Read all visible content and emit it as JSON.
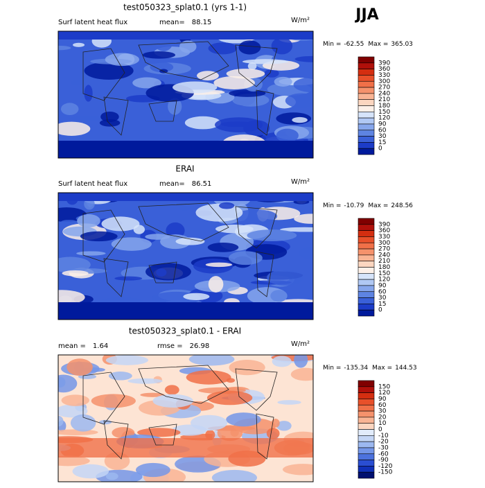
{
  "season": "JJA",
  "panels": [
    {
      "title": "test050323_splat0.1 (yrs 1-1)",
      "stats": [
        {
          "label": "Surf latent heat flux"
        },
        {
          "label": "mean=",
          "value": 88.15
        }
      ],
      "unit": "W/m²",
      "range": {
        "min_label": "Min =",
        "min": -62.55,
        "max_label": "Max =",
        "max": 365.03
      },
      "colorbar": {
        "labels": [
          390,
          360,
          330,
          300,
          270,
          240,
          210,
          180,
          150,
          120,
          90,
          60,
          30,
          15,
          0
        ],
        "colors": [
          "#800000",
          "#b0100a",
          "#d42e10",
          "#e8502a",
          "#f07048",
          "#f5926c",
          "#f9b494",
          "#fcd6c0",
          "#fdf0e8",
          "#d6e4fa",
          "#b0c8f4",
          "#86a6ec",
          "#5e84e2",
          "#3a60d8",
          "#1c3cc8",
          "#001a9c"
        ]
      }
    },
    {
      "title": "ERAI",
      "stats": [
        {
          "label": "Surf latent heat flux"
        },
        {
          "label": "mean=",
          "value": 86.51
        }
      ],
      "unit": "W/m²",
      "range": {
        "min_label": "Min =",
        "min": -10.79,
        "max_label": "Max =",
        "max": 248.56
      },
      "colorbar": {
        "labels": [
          390,
          360,
          330,
          300,
          270,
          240,
          210,
          180,
          150,
          120,
          90,
          60,
          30,
          15,
          0
        ],
        "colors": [
          "#800000",
          "#b0100a",
          "#d42e10",
          "#e8502a",
          "#f07048",
          "#f5926c",
          "#f9b494",
          "#fcd6c0",
          "#fdf0e8",
          "#d6e4fa",
          "#b0c8f4",
          "#86a6ec",
          "#5e84e2",
          "#3a60d8",
          "#1c3cc8",
          "#001a9c"
        ]
      }
    },
    {
      "title": "test050323_splat0.1 - ERAI",
      "stats": [
        {
          "label": "mean =",
          "value": 1.64
        },
        {
          "label": "rmse =",
          "value": 26.98
        }
      ],
      "unit": "W/m²",
      "range": {
        "min_label": "Min =",
        "min": -135.34,
        "max_label": "Max =",
        "max": 144.53
      },
      "colorbar": {
        "labels": [
          150,
          120,
          90,
          60,
          30,
          20,
          10,
          0,
          -10,
          -20,
          -30,
          -60,
          -90,
          -120,
          -150
        ],
        "colors": [
          "#800000",
          "#b0100a",
          "#d42e10",
          "#e8502a",
          "#f07048",
          "#f5926c",
          "#f9b494",
          "#fcd6c0",
          "#e2ecfb",
          "#c4d6f6",
          "#9cb8f0",
          "#7496e8",
          "#4c72de",
          "#2a4ed2",
          "#1030b8",
          "#001070"
        ]
      }
    }
  ]
}
